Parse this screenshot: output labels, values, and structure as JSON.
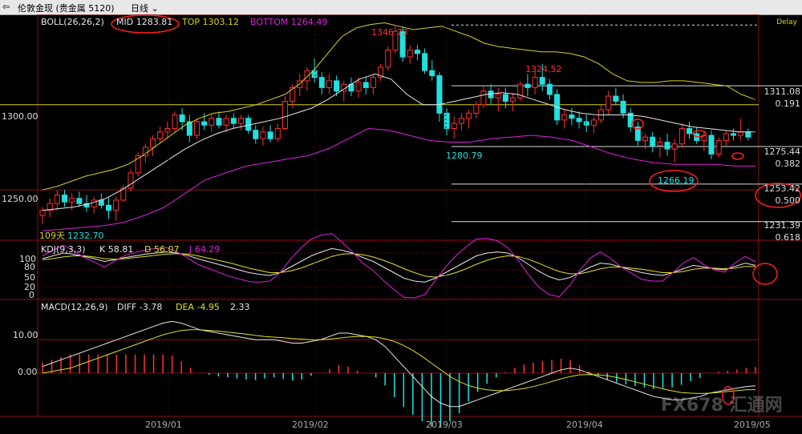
{
  "titlebar": {
    "icon": "back-arrow-icon",
    "symbol": "伦敦金现 (贵金属 5120)",
    "period": "日线"
  },
  "colors": {
    "up": "#ff3030",
    "down": "#20e0e0",
    "boll_mid": "#e8e8e8",
    "boll_top": "#d8d020",
    "boll_bottom": "#e020e0",
    "k": "#e8e8e8",
    "d": "#e0e020",
    "j": "#e020e0",
    "diff": "#e8e8e8",
    "dea": "#e0e020",
    "annotation_red": "#ff2020"
  },
  "main_panel": {
    "indicator": "BOLL(26,26,2)",
    "mid_label": "MID 1283.81",
    "top_label": "TOP 1303.12",
    "bottom_label": "BOTTOM 1264.49",
    "delay": "Delay",
    "bars_label": "109天",
    "price_ticks": [
      "1300.00",
      "1250.00"
    ],
    "annotations": [
      "1346.73",
      "1324.52",
      "1280.79",
      "1266.19",
      "1232.70"
    ],
    "fib_levels": [
      {
        "price": "1311.08",
        "ratio": "0.191"
      },
      {
        "price": "1275.44",
        "ratio": "0.382"
      },
      {
        "price": "1253.42",
        "ratio": "0.500"
      },
      {
        "price": "1231.39",
        "ratio": "0.618"
      }
    ]
  },
  "kdj_panel": {
    "indicator": "KDJ(9,3,3)",
    "k_label": "K 58.81",
    "d_label": "D 56.07",
    "j_label": "J 64.29",
    "ticks": [
      "100",
      "80",
      "50",
      "20",
      "0"
    ]
  },
  "macd_panel": {
    "indicator": "MACD(12,26,9)",
    "diff_label": "DIFF -3.78",
    "dea_label": "DEA -4.95",
    "macd_label": "2.33",
    "ticks": [
      "10.00",
      "0.00"
    ]
  },
  "x_axis": [
    "2019/01",
    "2019/02",
    "2019/03",
    "2019/04",
    "2019/05"
  ],
  "watermark": "FX678 汇通网",
  "chart_data": {
    "type": "candlestick",
    "ylim": [
      1228,
      1352
    ],
    "dates_labels": [
      "2019/01",
      "2019/02",
      "2019/03",
      "2019/04",
      "2019/05"
    ],
    "candles": [
      [
        1235,
        1240,
        1230,
        1238
      ],
      [
        1238,
        1245,
        1234,
        1242
      ],
      [
        1242,
        1250,
        1238,
        1247
      ],
      [
        1247,
        1250,
        1240,
        1243
      ],
      [
        1243,
        1248,
        1238,
        1245
      ],
      [
        1245,
        1249,
        1240,
        1242
      ],
      [
        1242,
        1247,
        1237,
        1240
      ],
      [
        1240,
        1246,
        1236,
        1244
      ],
      [
        1244,
        1248,
        1239,
        1241
      ],
      [
        1241,
        1246,
        1233,
        1238
      ],
      [
        1238,
        1246,
        1232,
        1244
      ],
      [
        1244,
        1253,
        1243,
        1251
      ],
      [
        1251,
        1262,
        1249,
        1260
      ],
      [
        1260,
        1272,
        1258,
        1270
      ],
      [
        1270,
        1277,
        1266,
        1275
      ],
      [
        1275,
        1282,
        1270,
        1280
      ],
      [
        1280,
        1287,
        1277,
        1284
      ],
      [
        1284,
        1290,
        1280,
        1286
      ],
      [
        1286,
        1296,
        1284,
        1294
      ],
      [
        1294,
        1298,
        1285,
        1290
      ],
      [
        1290,
        1294,
        1278,
        1282
      ],
      [
        1282,
        1292,
        1280,
        1290
      ],
      [
        1290,
        1295,
        1285,
        1288
      ],
      [
        1288,
        1294,
        1284,
        1292
      ],
      [
        1292,
        1296,
        1286,
        1288
      ],
      [
        1288,
        1294,
        1284,
        1292
      ],
      [
        1292,
        1295,
        1286,
        1289
      ],
      [
        1289,
        1294,
        1285,
        1292
      ],
      [
        1292,
        1294,
        1283,
        1285
      ],
      [
        1285,
        1288,
        1277,
        1280
      ],
      [
        1280,
        1287,
        1276,
        1284
      ],
      [
        1284,
        1288,
        1278,
        1280
      ],
      [
        1280,
        1289,
        1278,
        1286
      ],
      [
        1286,
        1305,
        1285,
        1302
      ],
      [
        1302,
        1312,
        1298,
        1310
      ],
      [
        1310,
        1318,
        1305,
        1314
      ],
      [
        1314,
        1322,
        1308,
        1320
      ],
      [
        1320,
        1327,
        1313,
        1316
      ],
      [
        1316,
        1319,
        1306,
        1310
      ],
      [
        1310,
        1318,
        1306,
        1314
      ],
      [
        1314,
        1317,
        1305,
        1308
      ],
      [
        1308,
        1314,
        1302,
        1312
      ],
      [
        1312,
        1316,
        1305,
        1308
      ],
      [
        1308,
        1316,
        1304,
        1313
      ],
      [
        1313,
        1316,
        1306,
        1310
      ],
      [
        1310,
        1318,
        1306,
        1316
      ],
      [
        1316,
        1324,
        1314,
        1322
      ],
      [
        1322,
        1334,
        1320,
        1332
      ],
      [
        1332,
        1346,
        1330,
        1343
      ],
      [
        1343,
        1346,
        1325,
        1328
      ],
      [
        1328,
        1335,
        1324,
        1332
      ],
      [
        1332,
        1335,
        1326,
        1330
      ],
      [
        1330,
        1333,
        1318,
        1320
      ],
      [
        1320,
        1326,
        1314,
        1317
      ],
      [
        1317,
        1319,
        1290,
        1295
      ],
      [
        1295,
        1298,
        1282,
        1286
      ],
      [
        1286,
        1293,
        1280,
        1289
      ],
      [
        1289,
        1295,
        1285,
        1292
      ],
      [
        1292,
        1297,
        1286,
        1295
      ],
      [
        1295,
        1302,
        1292,
        1300
      ],
      [
        1300,
        1311,
        1298,
        1308
      ],
      [
        1308,
        1312,
        1300,
        1304
      ],
      [
        1304,
        1310,
        1296,
        1306
      ],
      [
        1306,
        1310,
        1298,
        1302
      ],
      [
        1302,
        1307,
        1296,
        1304
      ],
      [
        1304,
        1314,
        1302,
        1312
      ],
      [
        1312,
        1318,
        1305,
        1310
      ],
      [
        1310,
        1320,
        1306,
        1316
      ],
      [
        1316,
        1324,
        1308,
        1312
      ],
      [
        1312,
        1315,
        1303,
        1306
      ],
      [
        1306,
        1309,
        1288,
        1291
      ],
      [
        1291,
        1297,
        1286,
        1294
      ],
      [
        1294,
        1298,
        1288,
        1292
      ],
      [
        1292,
        1296,
        1286,
        1290
      ],
      [
        1290,
        1294,
        1284,
        1288
      ],
      [
        1288,
        1293,
        1283,
        1291
      ],
      [
        1291,
        1300,
        1289,
        1297
      ],
      [
        1297,
        1308,
        1294,
        1305
      ],
      [
        1305,
        1310,
        1300,
        1302
      ],
      [
        1302,
        1306,
        1292,
        1295
      ],
      [
        1295,
        1298,
        1284,
        1287
      ],
      [
        1287,
        1290,
        1276,
        1279
      ],
      [
        1279,
        1283,
        1274,
        1281
      ],
      [
        1281,
        1284,
        1272,
        1276
      ],
      [
        1276,
        1281,
        1269,
        1278
      ],
      [
        1278,
        1283,
        1270,
        1274
      ],
      [
        1274,
        1280,
        1266,
        1277
      ],
      [
        1277,
        1289,
        1275,
        1286
      ],
      [
        1286,
        1290,
        1280,
        1283
      ],
      [
        1283,
        1287,
        1277,
        1279
      ],
      [
        1279,
        1284,
        1273,
        1282
      ],
      [
        1282,
        1285,
        1268,
        1271
      ],
      [
        1271,
        1281,
        1269,
        1279
      ],
      [
        1279,
        1285,
        1276,
        1283
      ],
      [
        1283,
        1286,
        1279,
        1282
      ],
      [
        1282,
        1292,
        1279,
        1284
      ],
      [
        1284,
        1286,
        1279,
        1281
      ]
    ],
    "boll_top": [
      1250,
      1252,
      1255,
      1258,
      1260,
      1262,
      1265,
      1270,
      1276,
      1282,
      1288,
      1292,
      1295,
      1296,
      1298,
      1300,
      1303,
      1306,
      1312,
      1320,
      1330,
      1340,
      1345,
      1347,
      1348,
      1346,
      1344,
      1345,
      1346,
      1343,
      1340,
      1336,
      1334,
      1333,
      1332,
      1331,
      1331,
      1330,
      1328,
      1324,
      1318,
      1314,
      1313,
      1313,
      1314,
      1314,
      1313,
      1312,
      1311,
      1306,
      1303
    ],
    "boll_mid": [
      1238,
      1239,
      1240,
      1242,
      1245,
      1250,
      1256,
      1262,
      1268,
      1274,
      1279,
      1283,
      1286,
      1288,
      1290,
      1292,
      1295,
      1298,
      1303,
      1309,
      1315,
      1318,
      1315,
      1306,
      1300,
      1300,
      1302,
      1304,
      1306,
      1307,
      1306,
      1303,
      1300,
      1297,
      1295,
      1294,
      1294,
      1294,
      1293,
      1291,
      1289,
      1287,
      1286,
      1285,
      1284,
      1284
    ],
    "boll_bottom": [
      1226,
      1227,
      1228,
      1229,
      1231,
      1235,
      1240,
      1248,
      1256,
      1260,
      1264,
      1266,
      1268,
      1270,
      1274,
      1280,
      1286,
      1285,
      1282,
      1279,
      1278,
      1278,
      1280,
      1281,
      1282,
      1281,
      1279,
      1275,
      1271,
      1268,
      1266,
      1265,
      1265,
      1265,
      1264,
      1264
    ],
    "kdj": {
      "k": [
        70,
        75,
        80,
        78,
        74,
        70,
        65,
        68,
        72,
        75,
        78,
        80,
        82,
        80,
        76,
        70,
        65,
        60,
        55,
        50,
        45,
        42,
        40,
        45,
        55,
        65,
        75,
        82,
        88,
        85,
        80,
        72,
        65,
        55,
        45,
        35,
        30,
        28,
        35,
        45,
        55,
        65,
        75,
        80,
        82,
        80,
        72,
        60,
        48,
        38,
        32,
        36,
        45,
        55,
        62,
        60,
        55,
        50,
        45,
        42,
        40,
        45,
        52,
        58,
        55,
        52,
        50,
        56,
        62,
        58
      ],
      "d": [
        68,
        70,
        73,
        75,
        75,
        73,
        70,
        69,
        70,
        72,
        74,
        76,
        78,
        79,
        78,
        75,
        71,
        67,
        63,
        58,
        53,
        49,
        45,
        45,
        48,
        53,
        60,
        67,
        74,
        78,
        79,
        77,
        73,
        67,
        60,
        52,
        45,
        39,
        37,
        40,
        45,
        52,
        60,
        67,
        72,
        75,
        74,
        69,
        62,
        54,
        47,
        43,
        43,
        47,
        52,
        55,
        55,
        53,
        51,
        48,
        45,
        45,
        47,
        51,
        53,
        53,
        52,
        53,
        56,
        56
      ],
      "j": [
        75,
        85,
        94,
        84,
        72,
        64,
        55,
        66,
        76,
        81,
        86,
        88,
        90,
        82,
        72,
        60,
        53,
        46,
        39,
        34,
        29,
        28,
        30,
        45,
        69,
        89,
        105,
        112,
        116,
        99,
        82,
        62,
        49,
        31,
        15,
        1,
        0,
        6,
        31,
        55,
        75,
        91,
        105,
        106,
        102,
        90,
        68,
        42,
        20,
        6,
        2,
        22,
        49,
        71,
        82,
        70,
        55,
        44,
        33,
        30,
        30,
        45,
        62,
        72,
        59,
        50,
        46,
        62,
        74,
        64
      ]
    },
    "macd": {
      "diff": [
        2,
        3,
        4,
        5,
        6,
        7,
        8,
        9,
        10,
        11,
        12,
        13,
        14,
        15,
        15.5,
        15,
        14,
        13,
        12.5,
        12,
        11.5,
        11,
        10.5,
        10,
        10,
        10,
        9.5,
        9,
        9,
        9.5,
        10,
        11,
        12,
        12,
        11.5,
        11,
        10,
        8,
        5,
        2,
        -1,
        -4,
        -7,
        -9,
        -10,
        -10,
        -9,
        -8,
        -7,
        -6,
        -5,
        -4,
        -3,
        -2,
        -1,
        0,
        1,
        1.5,
        1,
        0,
        -1,
        -2,
        -3,
        -4,
        -5,
        -6,
        -7,
        -7.5,
        -8,
        -8,
        -7.5,
        -7,
        -6,
        -5.5,
        -5,
        -4.5,
        -4,
        -3.8
      ],
      "dea": [
        0,
        0.5,
        1,
        1.5,
        2.5,
        3.5,
        4.5,
        5.5,
        6.5,
        7.5,
        8.5,
        9.5,
        10.5,
        11.5,
        12.2,
        12.8,
        13,
        13,
        12.8,
        12.6,
        12.3,
        12,
        11.7,
        11.3,
        11,
        10.8,
        10.6,
        10.4,
        10.2,
        10,
        10,
        10.2,
        10.5,
        10.8,
        11,
        11,
        10.8,
        10.3,
        9.5,
        8.3,
        6.8,
        5,
        3,
        1,
        -1,
        -2.5,
        -3.7,
        -4.5,
        -5,
        -5.2,
        -5.2,
        -5,
        -4.6,
        -4,
        -3.3,
        -2.5,
        -1.7,
        -1,
        -0.5,
        -0.4,
        -0.5,
        -0.8,
        -1.3,
        -1.9,
        -2.6,
        -3.3,
        -4,
        -4.7,
        -5.3,
        -5.8,
        -6,
        -6.1,
        -6,
        -5.8,
        -5.5,
        -5.2,
        -5,
        -4.95
      ],
      "hist": [
        2,
        2.5,
        3,
        3.5,
        3.5,
        3.5,
        3.5,
        3.5,
        3.5,
        3.5,
        3.5,
        3.5,
        3.5,
        3.5,
        3.3,
        2.2,
        1,
        0,
        -0.3,
        -0.6,
        -0.8,
        -1,
        -1.2,
        -1.3,
        -1,
        -0.8,
        -1.1,
        -1.4,
        -1.2,
        -0.5,
        0,
        0.8,
        1.5,
        1.2,
        0.5,
        0,
        -0.8,
        -2.3,
        -4.5,
        -6.3,
        -7.8,
        -9,
        -10,
        -10,
        -9,
        -7.5,
        -5.3,
        -3.5,
        -2,
        -0.8,
        0.2,
        1,
        1.6,
        2,
        2.3,
        2.5,
        2.7,
        2.5,
        1.5,
        0.4,
        -0.5,
        -1.2,
        -1.7,
        -2.1,
        -2.4,
        -2.7,
        -3,
        -2.8,
        -2.7,
        -2.2,
        -1.5,
        -0.9,
        0,
        0.3,
        0.5,
        0.7,
        1,
        1.17
      ]
    }
  }
}
